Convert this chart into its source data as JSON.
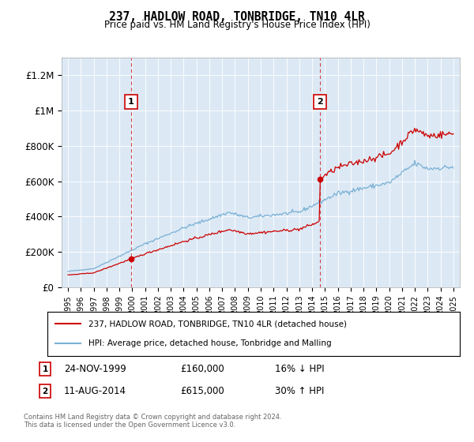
{
  "title": "237, HADLOW ROAD, TONBRIDGE, TN10 4LR",
  "subtitle": "Price paid vs. HM Land Registry's House Price Index (HPI)",
  "hpi_label": "HPI: Average price, detached house, Tonbridge and Malling",
  "property_label": "237, HADLOW ROAD, TONBRIDGE, TN10 4LR (detached house)",
  "property_color": "#cc0000",
  "hpi_color": "#7ab0d4",
  "background_color": "#dce9f5",
  "annotation1": {
    "num": "1",
    "date": "24-NOV-1999",
    "price": 160000,
    "note": "16% ↓ HPI",
    "year": 1999.9
  },
  "annotation2": {
    "num": "2",
    "date": "11-AUG-2014",
    "price": 615000,
    "note": "30% ↑ HPI",
    "year": 2014.6
  },
  "ylabel_ticks": [
    0,
    200000,
    400000,
    600000,
    800000,
    1000000,
    1200000
  ],
  "ylabel_labels": [
    "£0",
    "£200K",
    "£400K",
    "£600K",
    "£800K",
    "£1M",
    "£1.2M"
  ],
  "xlim": [
    1994.5,
    2025.5
  ],
  "ylim": [
    0,
    1300000
  ],
  "footer": "Contains HM Land Registry data © Crown copyright and database right 2024.\nThis data is licensed under the Open Government Licence v3.0."
}
